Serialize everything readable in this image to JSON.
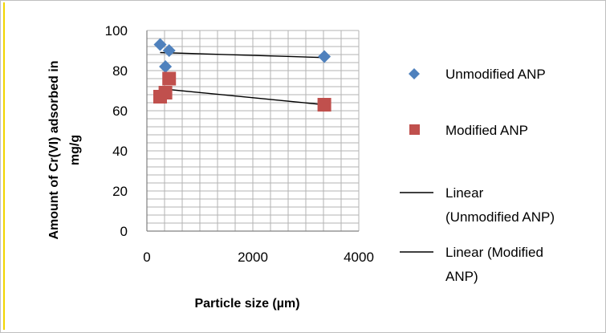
{
  "chart_data": {
    "type": "scatter",
    "xlabel": "Particle size (µm)",
    "ylabel": [
      "Amount of Cr(VI) adsorbed in",
      "mg/g"
    ],
    "xlim": [
      0,
      4000
    ],
    "ylim": [
      0,
      100
    ],
    "x_ticks": [
      0,
      2000,
      4000
    ],
    "y_ticks": [
      0,
      20,
      40,
      60,
      80,
      100
    ],
    "grid": true,
    "legend_position": "right",
    "series": [
      {
        "name": "Unmodified ANP",
        "marker": "diamond",
        "color": "#4f81bd",
        "points": [
          [
            250,
            93
          ],
          [
            350,
            82
          ],
          [
            420,
            90
          ],
          [
            3350,
            87
          ]
        ]
      },
      {
        "name": "Modified ANP",
        "marker": "square",
        "color": "#c0504d",
        "points": [
          [
            250,
            67
          ],
          [
            350,
            69
          ],
          [
            420,
            76
          ],
          [
            3350,
            63
          ]
        ]
      }
    ],
    "trendlines": [
      {
        "name_lines": [
          "Linear",
          "(Unmodified ANP)"
        ],
        "x": [
          250,
          3350
        ],
        "y": [
          89,
          86.5
        ],
        "color": "#000000"
      },
      {
        "name_lines": [
          "Linear (Modified",
          "ANP)"
        ],
        "x": [
          250,
          3350
        ],
        "y": [
          71,
          63
        ],
        "color": "#000000"
      }
    ]
  }
}
